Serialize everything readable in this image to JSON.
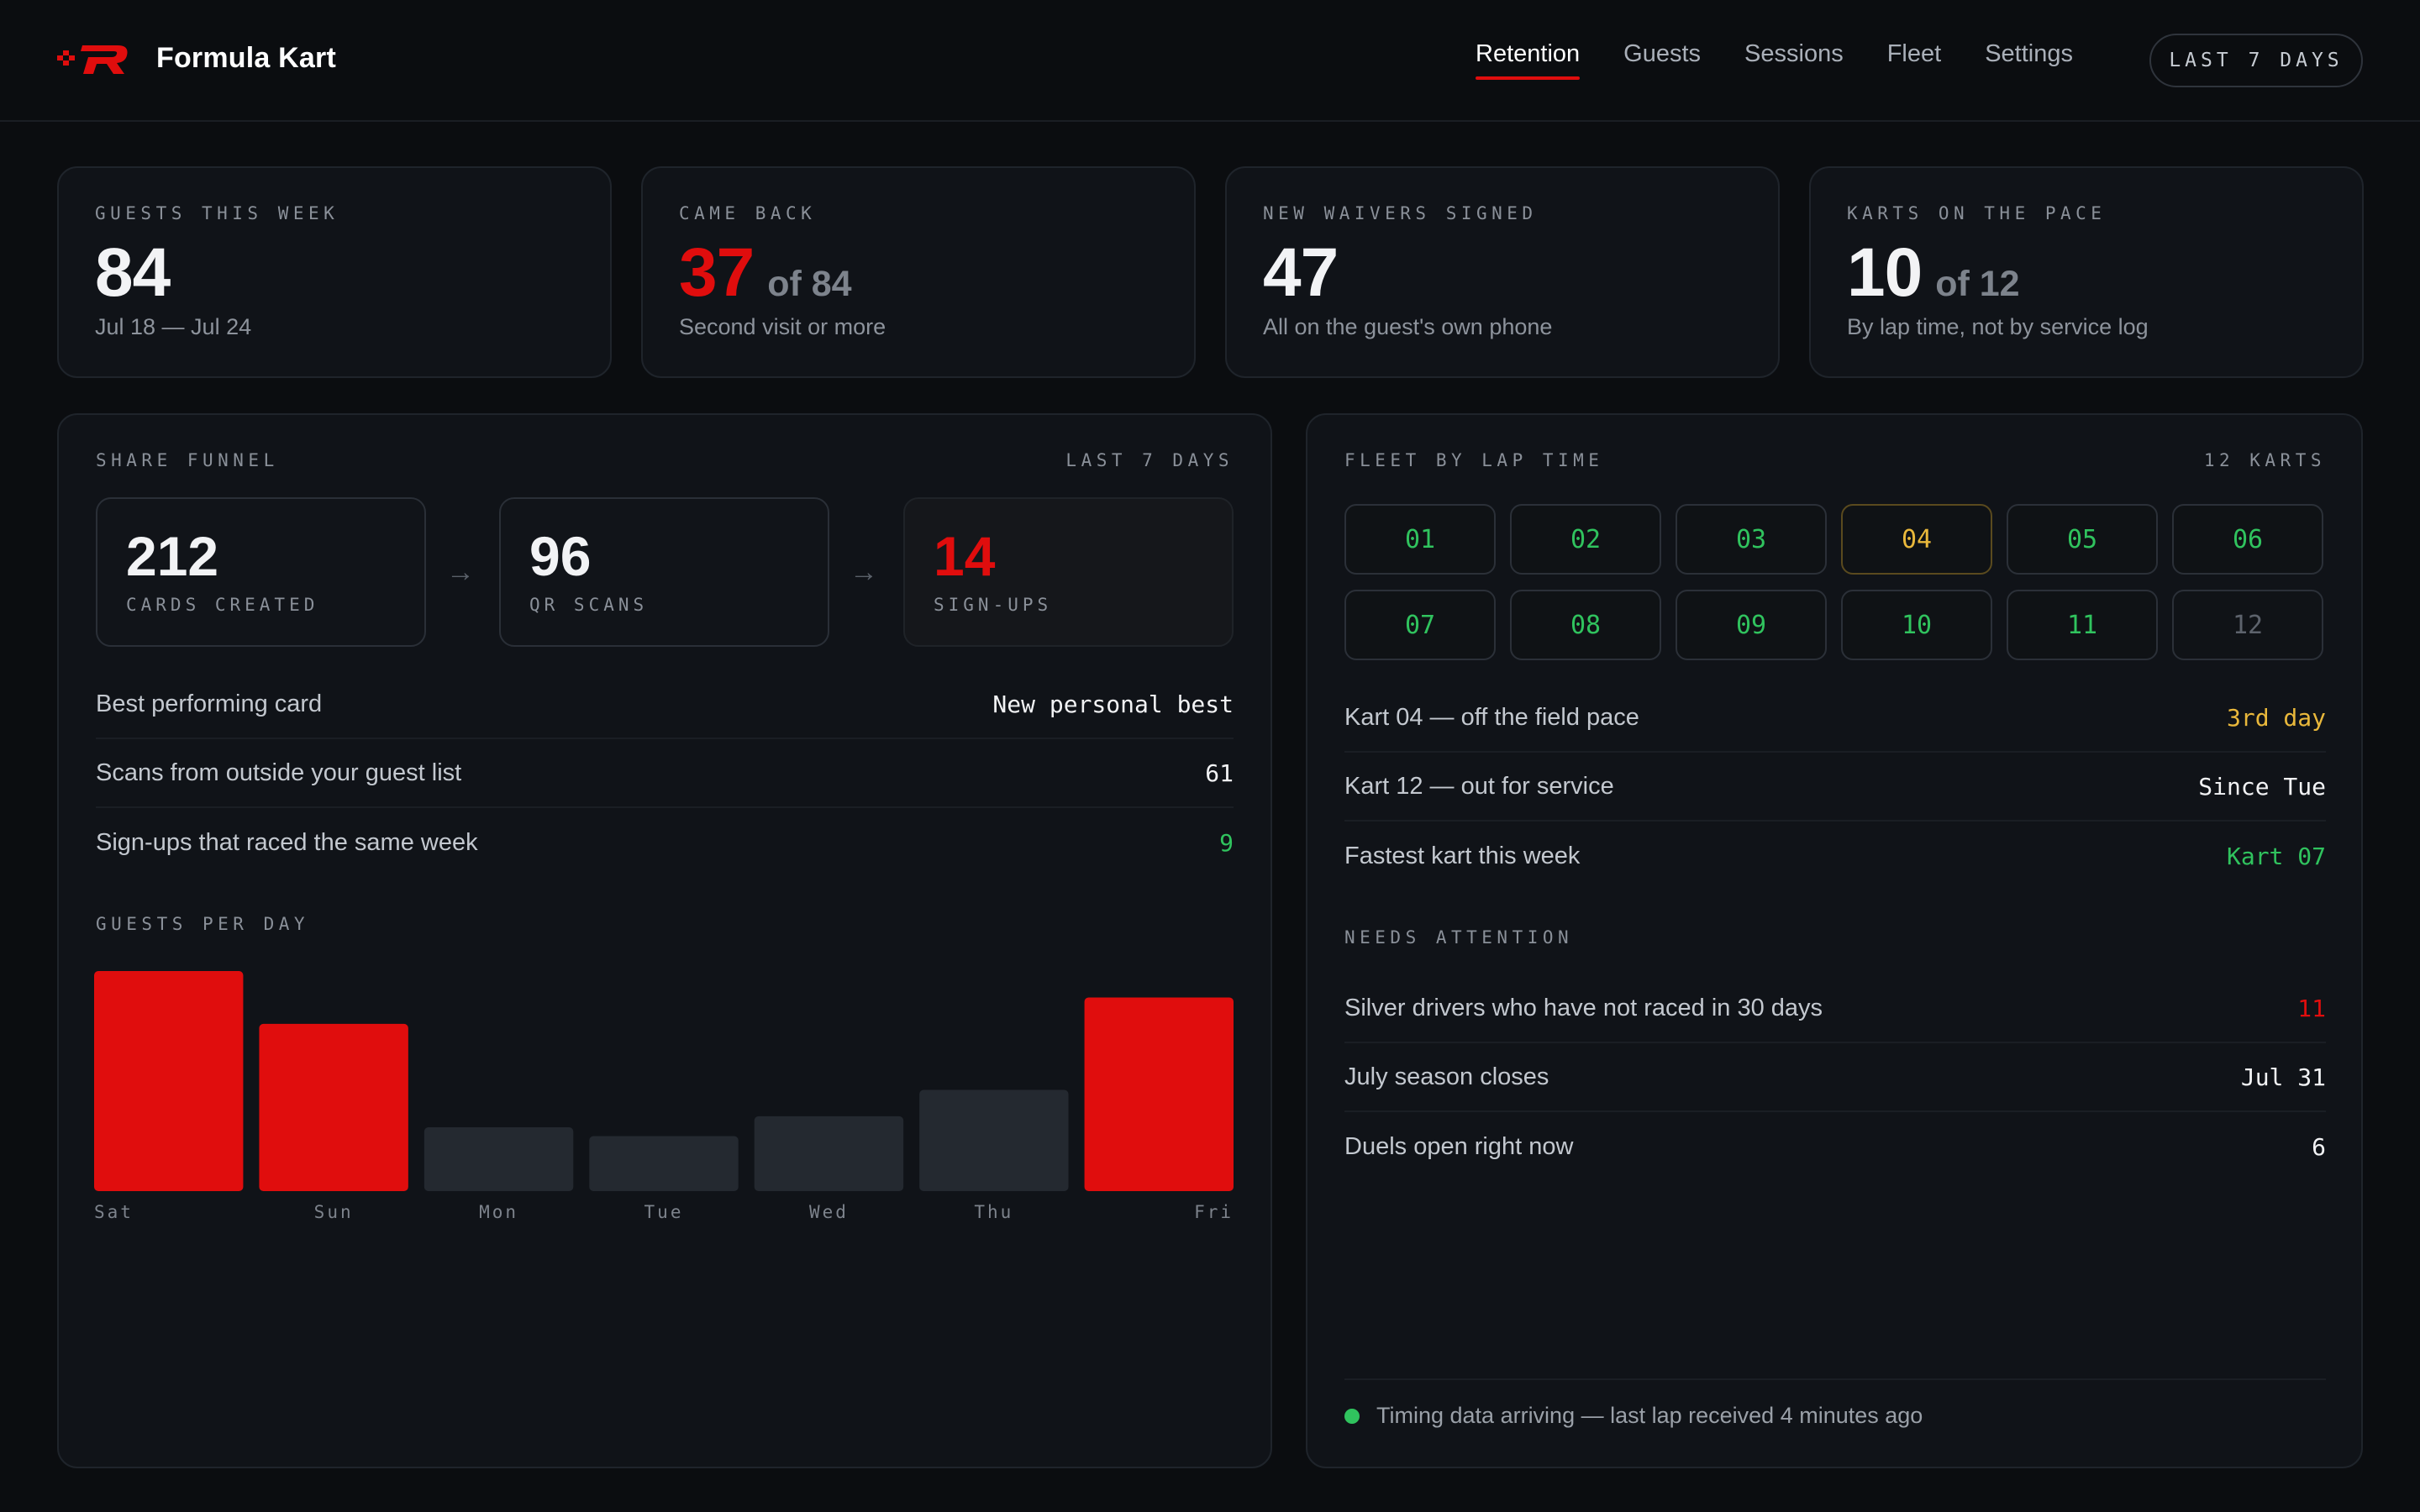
{
  "app": {
    "brand": "Formula Kart",
    "nav": [
      "Retention",
      "Guests",
      "Sessions",
      "Fleet",
      "Settings"
    ],
    "range_button": "LAST 7 DAYS"
  },
  "stats": [
    {
      "label": "GUESTS THIS WEEK",
      "value": "84",
      "of": "",
      "sub": "Jul 18 — Jul 24"
    },
    {
      "label": "CAME BACK",
      "value": "37",
      "of": "of 84",
      "sub": "Second visit or more"
    },
    {
      "label": "NEW WAIVERS SIGNED",
      "value": "47",
      "of": "",
      "sub": "All on the guest's own phone"
    },
    {
      "label": "KARTS ON THE PACE",
      "value": "10",
      "of": "of 12",
      "sub": "By lap time, not by service log"
    }
  ],
  "funnel": {
    "title": "SHARE FUNNEL",
    "range": "LAST 7 DAYS",
    "steps": [
      {
        "value": "212",
        "label": "CARDS CREATED"
      },
      {
        "value": "96",
        "label": "QR SCANS"
      },
      {
        "value": "14",
        "label": "SIGN-UPS"
      }
    ],
    "arrow": "→",
    "rows": [
      {
        "label": "Best performing card",
        "value": "New personal best"
      },
      {
        "label": "Scans from outside your guest list",
        "value": "61"
      },
      {
        "label": "Sign-ups that raced the same week",
        "value": "9"
      }
    ]
  },
  "chart_title": "GUESTS PER DAY",
  "chart_data": {
    "type": "bar",
    "categories": [
      "Sat",
      "Sun",
      "Mon",
      "Tue",
      "Wed",
      "Thu",
      "Fri"
    ],
    "values": [
      100,
      76,
      29,
      25,
      34,
      46,
      88
    ],
    "highlighted": [
      true,
      true,
      false,
      false,
      false,
      false,
      true
    ],
    "colors": {
      "highlight": "#e00d0d",
      "normal": "#242930"
    },
    "ylim": [
      0,
      100
    ]
  },
  "fleet": {
    "title": "FLEET BY LAP TIME",
    "count": "12 KARTS",
    "karts": [
      {
        "id": "01",
        "status": "ok"
      },
      {
        "id": "02",
        "status": "ok"
      },
      {
        "id": "03",
        "status": "ok"
      },
      {
        "id": "04",
        "status": "warn"
      },
      {
        "id": "05",
        "status": "ok"
      },
      {
        "id": "06",
        "status": "ok"
      },
      {
        "id": "07",
        "status": "ok"
      },
      {
        "id": "08",
        "status": "ok"
      },
      {
        "id": "09",
        "status": "ok"
      },
      {
        "id": "10",
        "status": "ok"
      },
      {
        "id": "11",
        "status": "ok"
      },
      {
        "id": "12",
        "status": "off"
      }
    ],
    "rows": [
      {
        "label": "Kart 04 — off the field pace",
        "value": "3rd day"
      },
      {
        "label": "Kart 12 — out for service",
        "value": "Since Tue"
      },
      {
        "label": "Fastest kart this week",
        "value": "Kart 07"
      }
    ],
    "attention_title": "NEEDS ATTENTION",
    "attention": [
      {
        "label": "Silver drivers who have not raced in 30 days",
        "value": "11"
      },
      {
        "label": "July season closes",
        "value": "Jul 31"
      },
      {
        "label": "Duels open right now",
        "value": "6"
      }
    ],
    "status": "Timing data arriving — last lap received 4 minutes ago"
  },
  "colors": {
    "accent": "#e00d0d",
    "good": "#30c35e",
    "warn": "#e9b83b",
    "background": "#0b0d10"
  }
}
